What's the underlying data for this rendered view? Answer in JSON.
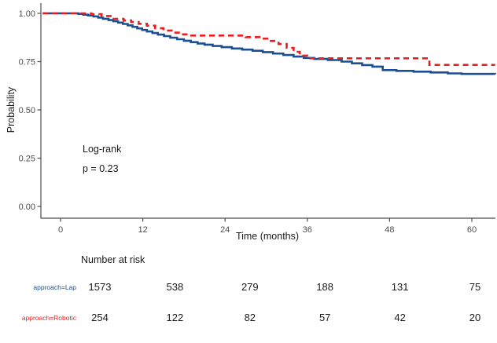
{
  "chart_data": {
    "type": "line",
    "subtype": "kaplan-meier-step-curve",
    "title": "",
    "xlabel": "Time (months)",
    "ylabel": "Probability",
    "xlim": [
      -2.9,
      63.5
    ],
    "ylim": [
      0,
      1.06
    ],
    "grid": false,
    "legend_position": "none",
    "axis_color": "#4d4d4d",
    "x_ticks": [
      0,
      12,
      24,
      36,
      48,
      60
    ],
    "y_tick_labels": [
      "0.00",
      "0.25",
      "0.50",
      "0.75",
      "1.00"
    ],
    "y_tick_values": [
      0,
      0.25,
      0.5,
      0.75,
      1
    ],
    "annotation": {
      "line1": "Log-rank",
      "line2": "p = 0.23"
    },
    "series": [
      {
        "name": "approach=Lap",
        "color": "#1B4F94",
        "dash": "solid",
        "points": [
          [
            -2.6,
            1.0
          ],
          [
            2,
            1.0
          ],
          [
            2.6,
            0.997
          ],
          [
            3.3,
            0.993
          ],
          [
            4,
            0.989
          ],
          [
            4.8,
            0.984
          ],
          [
            5.5,
            0.978
          ],
          [
            6.2,
            0.972
          ],
          [
            7,
            0.965
          ],
          [
            7.7,
            0.959
          ],
          [
            8.4,
            0.952
          ],
          [
            9.1,
            0.945
          ],
          [
            9.8,
            0.938
          ],
          [
            10.5,
            0.93
          ],
          [
            11.2,
            0.922
          ],
          [
            11.9,
            0.914
          ],
          [
            12.6,
            0.906
          ],
          [
            13.4,
            0.898
          ],
          [
            14.2,
            0.89
          ],
          [
            15.1,
            0.882
          ],
          [
            16,
            0.874
          ],
          [
            17,
            0.866
          ],
          [
            18,
            0.858
          ],
          [
            19,
            0.851
          ],
          [
            20,
            0.844
          ],
          [
            21,
            0.838
          ],
          [
            22.2,
            0.831
          ],
          [
            23.5,
            0.825
          ],
          [
            25,
            0.818
          ],
          [
            26.5,
            0.812
          ],
          [
            28,
            0.806
          ],
          [
            29.5,
            0.799
          ],
          [
            31,
            0.792
          ],
          [
            32.5,
            0.784
          ],
          [
            34,
            0.776
          ],
          [
            35.5,
            0.769
          ],
          [
            37,
            0.764
          ],
          [
            39,
            0.758
          ],
          [
            41,
            0.75
          ],
          [
            42.5,
            0.741
          ],
          [
            44,
            0.732
          ],
          [
            45.5,
            0.724
          ],
          [
            47,
            0.706
          ],
          [
            49,
            0.702
          ],
          [
            51.5,
            0.698
          ],
          [
            54,
            0.694
          ],
          [
            56.5,
            0.689
          ],
          [
            58.5,
            0.686
          ],
          [
            63.4,
            0.685
          ]
        ]
      },
      {
        "name": "approach=Robotic",
        "color": "#EA1E1E",
        "dash": "dashed",
        "points": [
          [
            -2.6,
            1.0
          ],
          [
            3.5,
            1.0
          ],
          [
            4.5,
            0.996
          ],
          [
            6,
            0.986
          ],
          [
            7.5,
            0.971
          ],
          [
            9.2,
            0.963
          ],
          [
            10.3,
            0.955
          ],
          [
            11.4,
            0.946
          ],
          [
            12.6,
            0.936
          ],
          [
            13.8,
            0.923
          ],
          [
            15,
            0.911
          ],
          [
            16.2,
            0.9
          ],
          [
            17.4,
            0.891
          ],
          [
            18.6,
            0.885
          ],
          [
            27,
            0.877
          ],
          [
            29,
            0.869
          ],
          [
            30.5,
            0.857
          ],
          [
            31.8,
            0.841
          ],
          [
            33,
            0.821
          ],
          [
            34,
            0.801
          ],
          [
            34.9,
            0.781
          ],
          [
            36,
            0.767
          ],
          [
            53.8,
            0.733
          ],
          [
            63.4,
            0.733
          ]
        ]
      }
    ]
  },
  "risk_table": {
    "title": "Number at risk",
    "time_points": [
      0,
      12,
      24,
      36,
      48,
      60
    ],
    "rows": [
      {
        "label": "approach=Lap",
        "color": "#1B4F94",
        "counts": [
          "1573",
          "538",
          "279",
          "188",
          "131",
          "75"
        ]
      },
      {
        "label": "approach=Robotic",
        "color": "#EA1E1E",
        "counts": [
          "254",
          "122",
          "82",
          "57",
          "42",
          "20"
        ]
      }
    ]
  }
}
